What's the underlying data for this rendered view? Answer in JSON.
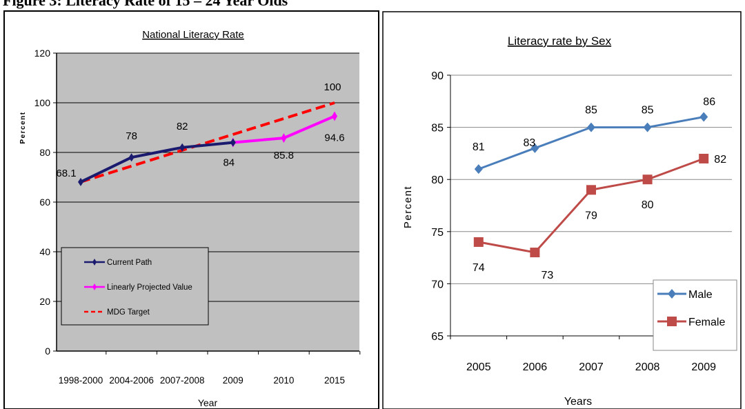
{
  "figure_title": "Figure 3: Literacy Rate of 15 – 24 Year Olds",
  "chart_data": [
    {
      "type": "line",
      "title": "National Literacy Rate",
      "xlabel": "Year",
      "ylabel": "Percent",
      "categories": [
        "1998-2000",
        "2004-2006",
        "2007-2008",
        "2009",
        "2010",
        "2015"
      ],
      "ylim": [
        0,
        120
      ],
      "yticks": [
        "0",
        "20",
        "40",
        "60",
        "80",
        "100",
        "120"
      ],
      "grid": true,
      "legend_position": "bottom-left",
      "series": [
        {
          "name": "Current Path",
          "color": "#1a1a6e",
          "style": "solid",
          "values": [
            68.1,
            78,
            82,
            84,
            null,
            null
          ]
        },
        {
          "name": "Linearly Projected Value",
          "color": "#ff00ff",
          "style": "solid",
          "values": [
            null,
            null,
            null,
            84,
            85.8,
            94.6
          ]
        },
        {
          "name": "MDG Target",
          "color": "#ff0000",
          "style": "dashed",
          "values": [
            68.1,
            null,
            null,
            null,
            null,
            100
          ]
        }
      ],
      "data_labels": [
        "68.1",
        "78",
        "82",
        "84",
        "85.8",
        "94.6",
        "100"
      ]
    },
    {
      "type": "line",
      "title": "Literacy rate by Sex",
      "xlabel": "Years",
      "ylabel": "Percent",
      "categories": [
        "2005",
        "2006",
        "2007",
        "2008",
        "2009"
      ],
      "ylim": [
        65,
        90
      ],
      "yticks": [
        "65",
        "70",
        "75",
        "80",
        "85",
        "90"
      ],
      "grid": true,
      "legend_position": "bottom-right",
      "series": [
        {
          "name": "Male",
          "color": "#4a7ebb",
          "marker": "diamond",
          "values": [
            81,
            83,
            85,
            85,
            86
          ]
        },
        {
          "name": "Female",
          "color": "#be4b48",
          "marker": "square",
          "values": [
            74,
            73,
            79,
            80,
            82
          ]
        }
      ]
    }
  ]
}
